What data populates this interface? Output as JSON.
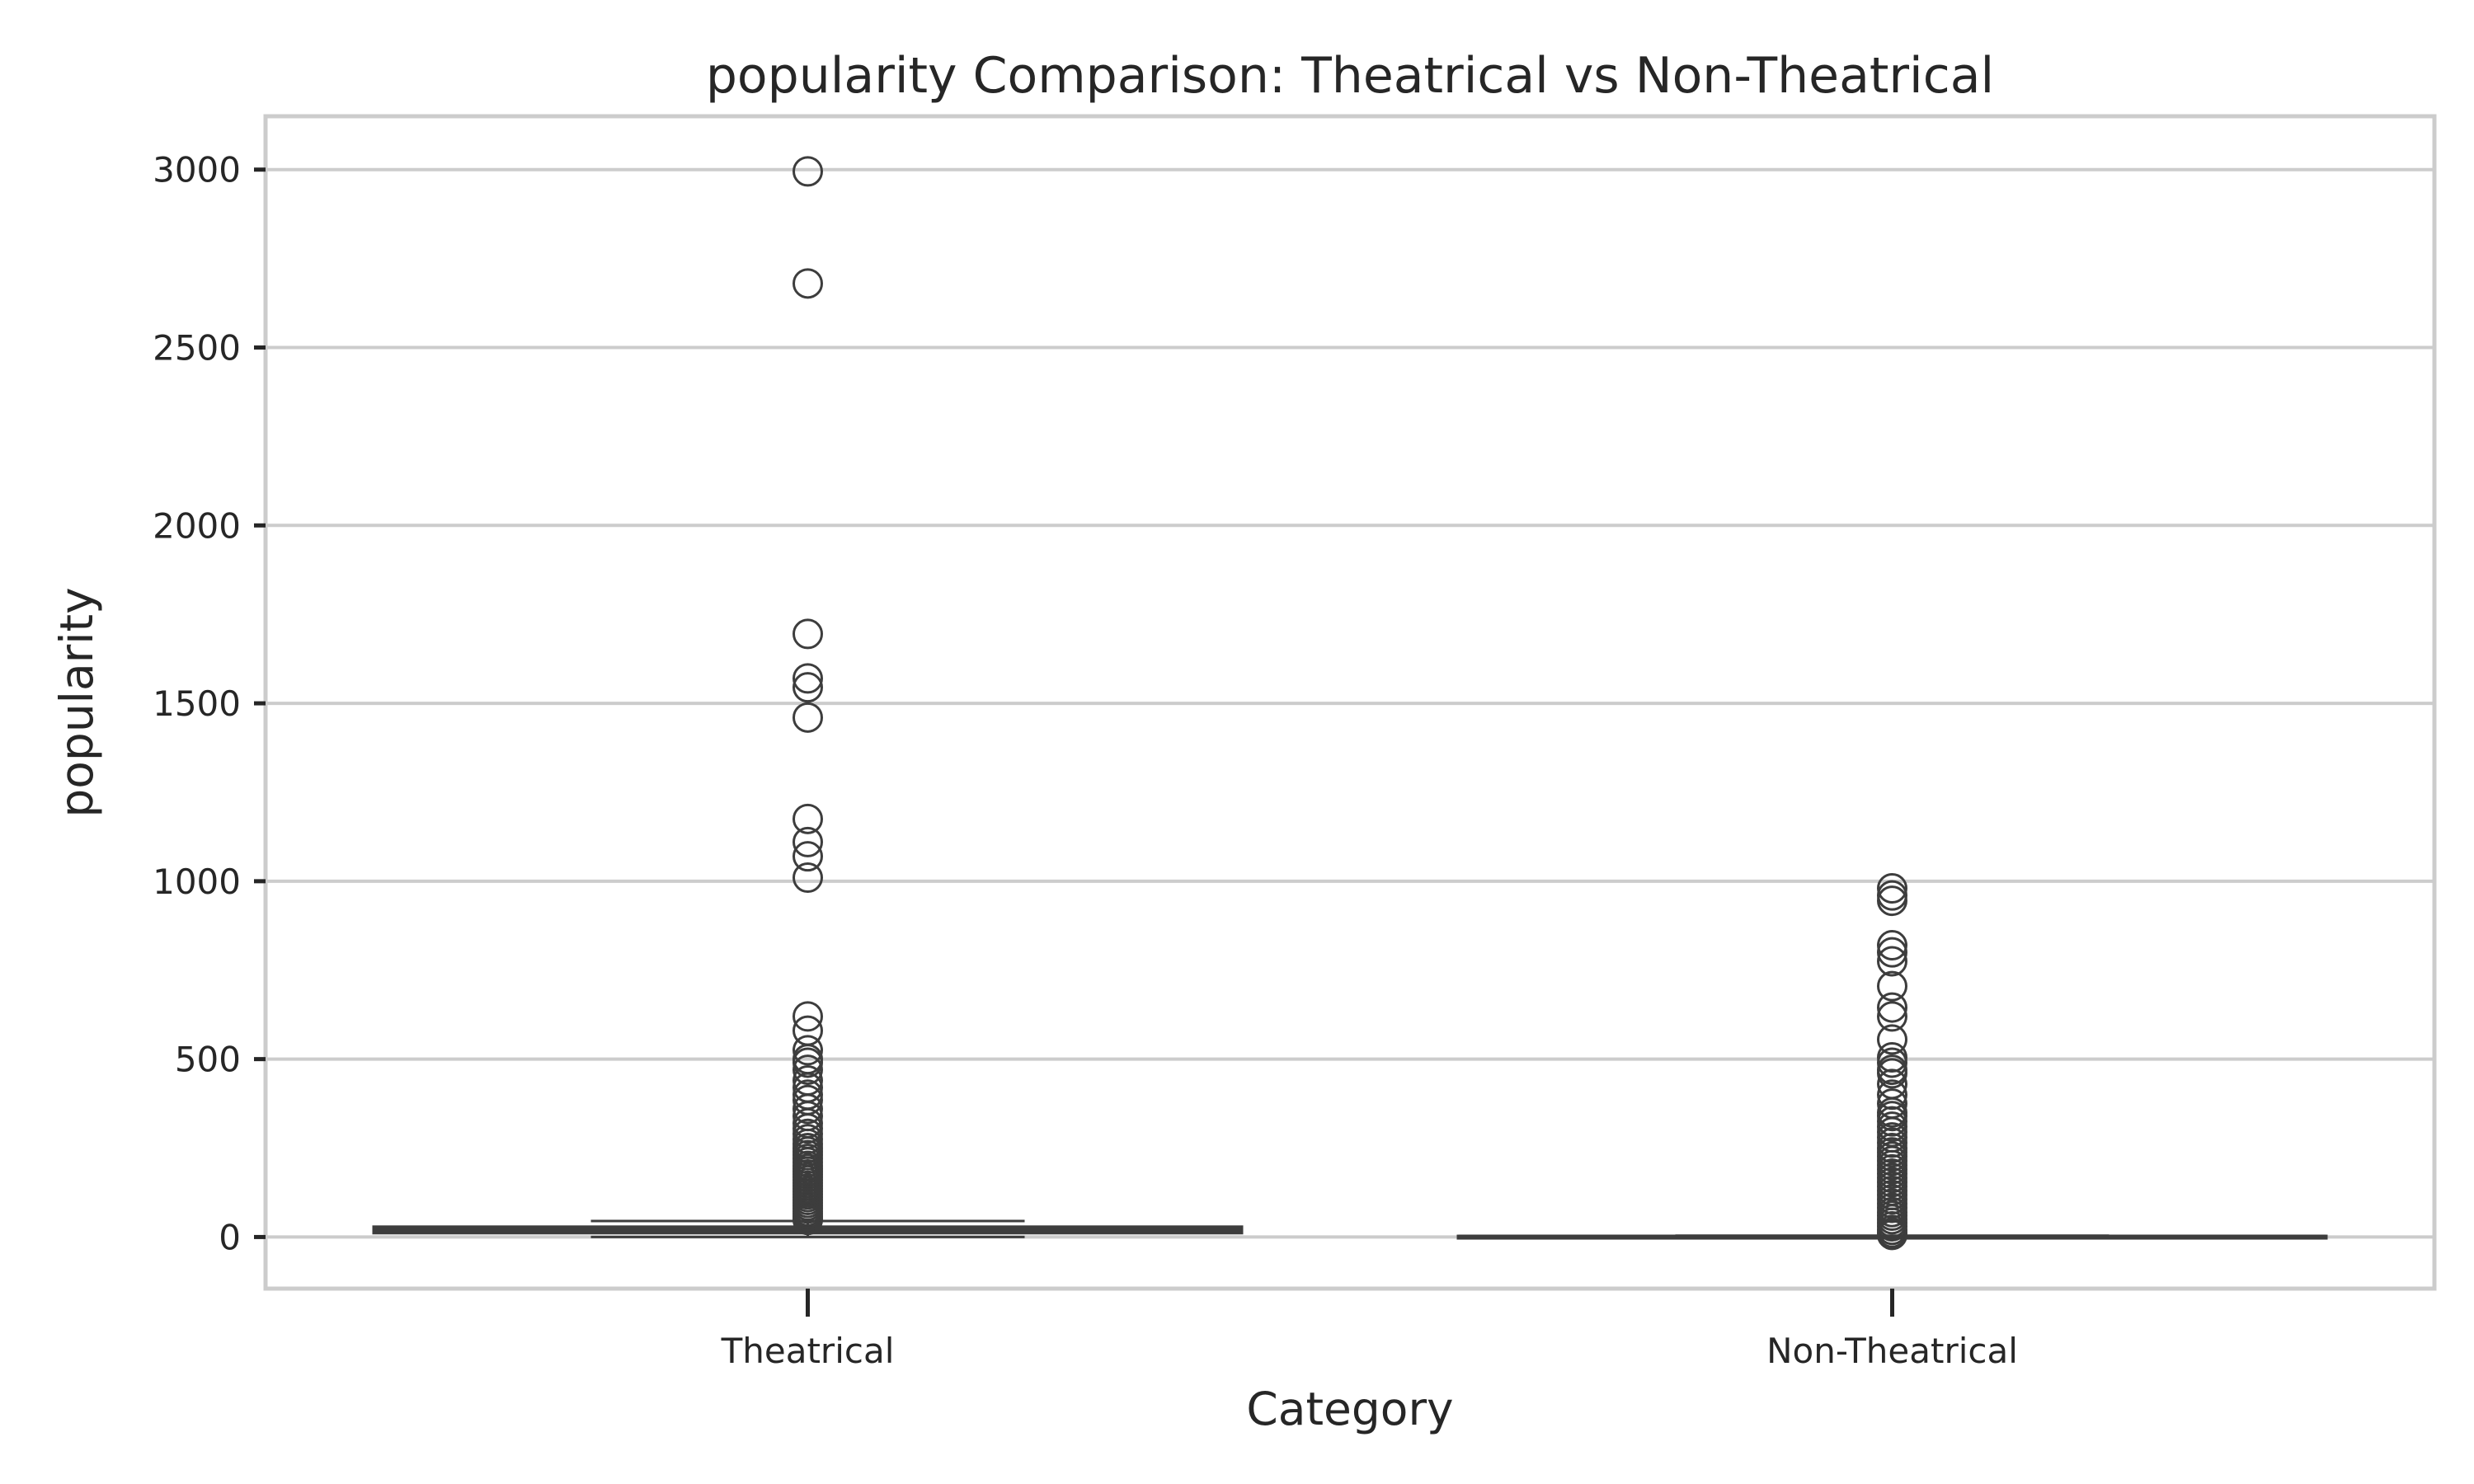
{
  "chart_data": {
    "type": "box",
    "title": "popularity Comparison: Theatrical vs Non-Theatrical",
    "xlabel": "Category",
    "ylabel": "popularity",
    "categories": [
      "Theatrical",
      "Non-Theatrical"
    ],
    "ylim": [
      -145,
      3150
    ],
    "yticks": [
      0,
      500,
      1000,
      1500,
      2000,
      2500,
      3000
    ],
    "ytick_labels": [
      "0",
      "500",
      "1000",
      "1500",
      "2000",
      "2500",
      "3000"
    ],
    "grid": true,
    "colors": {
      "box_stroke": "#3d3d3d",
      "grid": "#cccccc",
      "frame": "#cccccc",
      "text": "#262626"
    },
    "boxes": [
      {
        "category": "Theatrical",
        "whisker_low": 0,
        "q1": 12,
        "median": 20,
        "q3": 28,
        "whisker_high": 45,
        "outliers": [
          2995,
          2680,
          1695,
          1570,
          1545,
          1460,
          1175,
          1110,
          1070,
          1010,
          620,
          580,
          525,
          500,
          490,
          470,
          440,
          420,
          400,
          385,
          360,
          340,
          320,
          305,
          290,
          275,
          262,
          250,
          240,
          230,
          220,
          210,
          200,
          192,
          184,
          176,
          168,
          160,
          152,
          144,
          136,
          128,
          120,
          112,
          104,
          96,
          88,
          80,
          72,
          65,
          58,
          52,
          48
        ]
      },
      {
        "category": "Non-Theatrical",
        "whisker_low": 0,
        "q1": 0,
        "median": 1,
        "q3": 2,
        "whisker_high": 4,
        "outliers": [
          980,
          960,
          945,
          820,
          800,
          775,
          705,
          645,
          620,
          555,
          505,
          490,
          470,
          460,
          430,
          400,
          375,
          350,
          340,
          325,
          310,
          295,
          280,
          265,
          250,
          238,
          226,
          214,
          202,
          190,
          178,
          166,
          154,
          142,
          130,
          118,
          106,
          94,
          82,
          70,
          60,
          50,
          40,
          30,
          20,
          12,
          6
        ]
      }
    ]
  }
}
